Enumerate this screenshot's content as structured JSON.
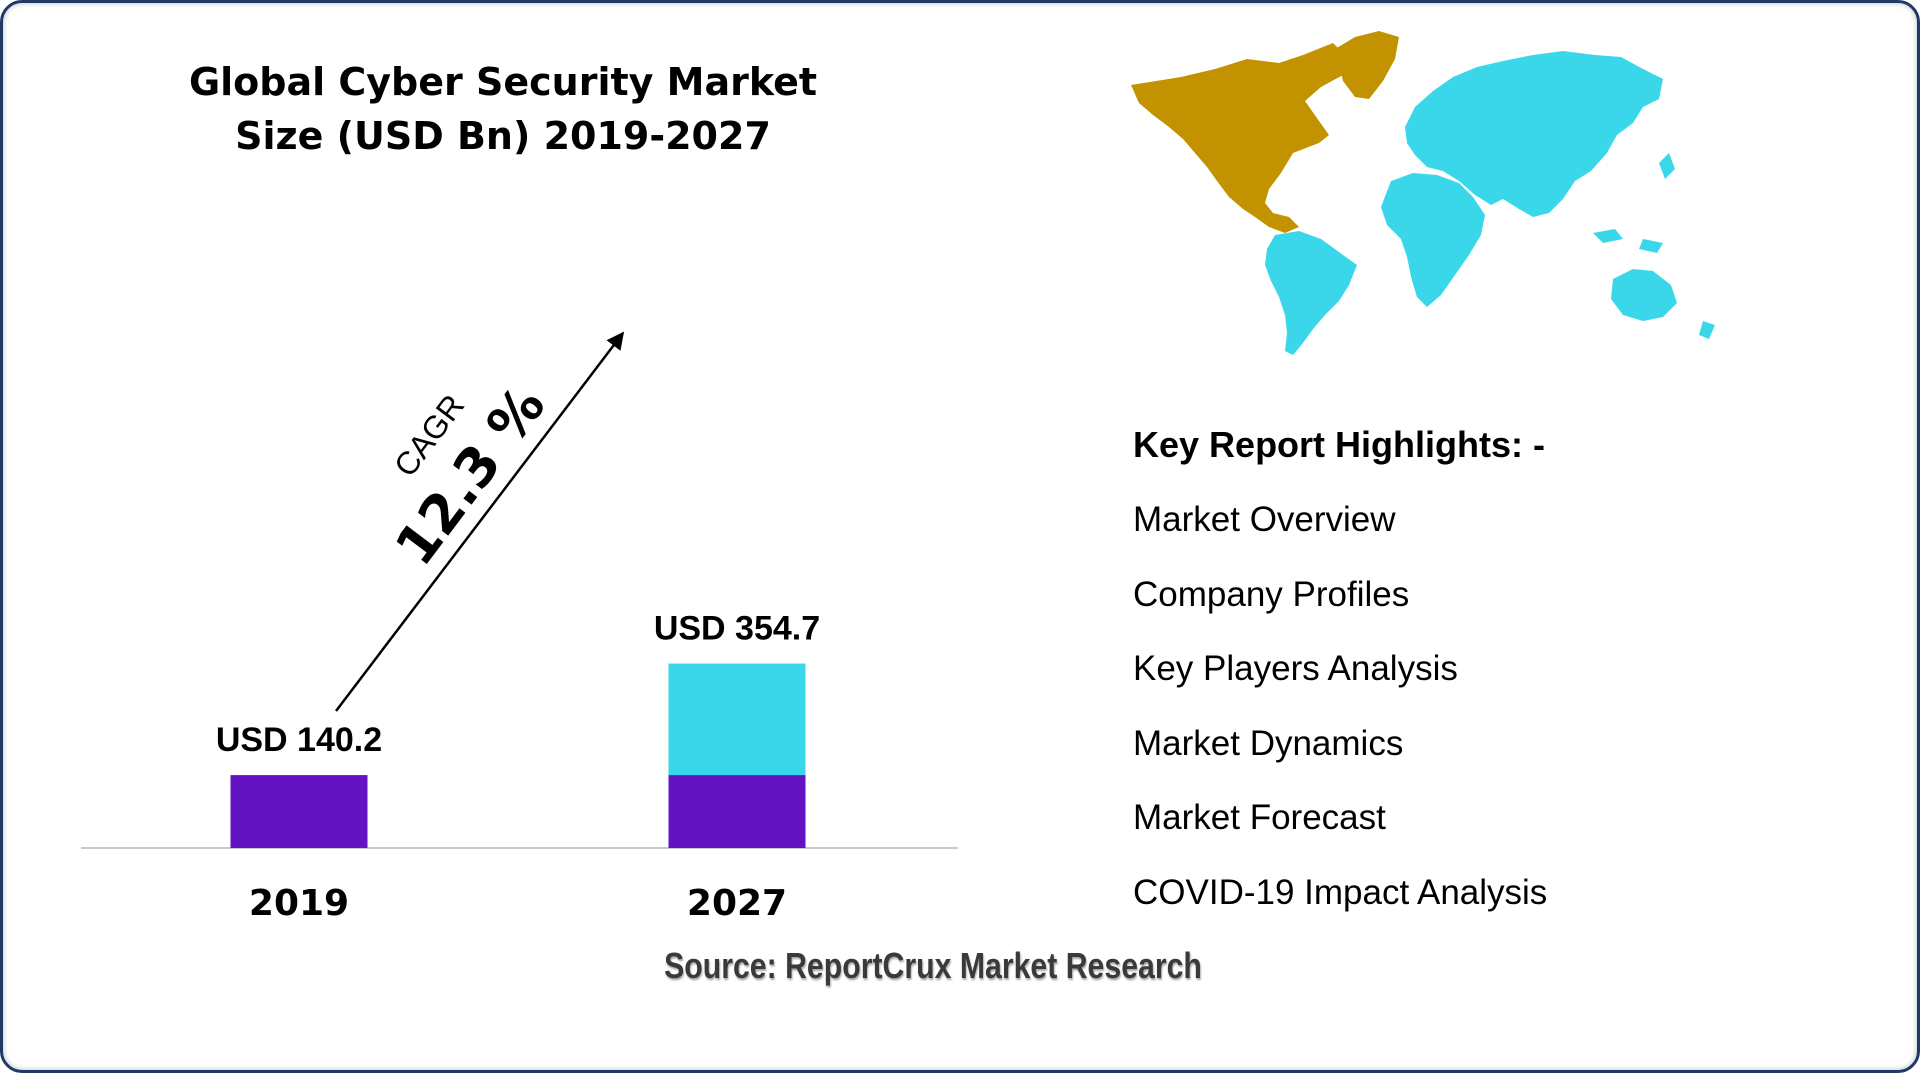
{
  "chart_data": {
    "type": "bar",
    "title_lines": [
      "Global Cyber Security Market",
      "Size (USD Bn) 2019-2027"
    ],
    "categories": [
      "2019",
      "2027"
    ],
    "values": [
      140.2,
      354.7
    ],
    "value_labels": [
      "USD 140.2",
      "USD 354.7"
    ],
    "xlabel": "",
    "ylabel": "",
    "grid": false,
    "colors": {
      "base": "#6313c2",
      "growth": "#3ad7eb"
    },
    "annotation": {
      "caption": "CAGR",
      "value": "12.3 %"
    }
  },
  "highlights": {
    "heading": "Key Report Highlights: -",
    "items": [
      "Market Overview",
      "Company Profiles",
      "Key Players Analysis",
      "Market Dynamics",
      "Market Forecast",
      "COVID-19 Impact Analysis"
    ]
  },
  "source": "Source: ReportCrux Market Research",
  "map": {
    "icon": "world-map-icon",
    "colors": {
      "north_america": "#c39200",
      "rest_of_world": "#3ad7eb"
    }
  }
}
